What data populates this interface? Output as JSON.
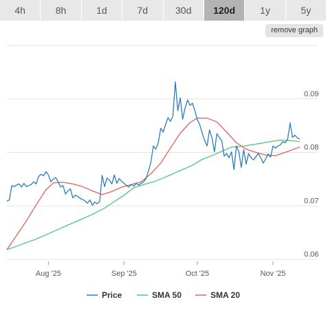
{
  "tabs": [
    {
      "label": "4h",
      "active": false
    },
    {
      "label": "8h",
      "active": false
    },
    {
      "label": "1d",
      "active": false
    },
    {
      "label": "7d",
      "active": false
    },
    {
      "label": "30d",
      "active": false
    },
    {
      "label": "120d",
      "active": true
    },
    {
      "label": "1y",
      "active": false
    },
    {
      "label": "5y",
      "active": false
    }
  ],
  "remove_graph_label": "remove graph",
  "chart_data": {
    "type": "line",
    "title": "",
    "xlabel": "",
    "ylabel": "",
    "ylim": [
      0.06,
      0.1
    ],
    "yticks": [
      "0.06",
      "0.07",
      "0.08",
      "0.09"
    ],
    "xticks": [
      {
        "label": "Aug '25",
        "date": "2025-08-01"
      },
      {
        "label": "Sep '25",
        "date": "2025-09-01"
      },
      {
        "label": "Oct '25",
        "date": "2025-10-01"
      },
      {
        "label": "Nov '25",
        "date": "2025-11-01"
      }
    ],
    "xlim": [
      "2025-07-15",
      "2025-11-12"
    ],
    "grid": "horizontal",
    "legend_position": "bottom",
    "series": [
      {
        "name": "Price",
        "color": "#2b7bb9",
        "points": [
          [
            "2025-07-15",
            0.0709
          ],
          [
            "2025-07-16",
            0.0711
          ],
          [
            "2025-07-17",
            0.0738
          ],
          [
            "2025-07-18",
            0.0736
          ],
          [
            "2025-07-19",
            0.0739
          ],
          [
            "2025-07-20",
            0.0741
          ],
          [
            "2025-07-21",
            0.0735
          ],
          [
            "2025-07-22",
            0.0742
          ],
          [
            "2025-07-23",
            0.0736
          ],
          [
            "2025-07-24",
            0.0738
          ],
          [
            "2025-07-25",
            0.074
          ],
          [
            "2025-07-26",
            0.0745
          ],
          [
            "2025-07-27",
            0.0741
          ],
          [
            "2025-07-28",
            0.0755
          ],
          [
            "2025-07-29",
            0.0759
          ],
          [
            "2025-07-30",
            0.0756
          ],
          [
            "2025-07-31",
            0.0764
          ],
          [
            "2025-08-01",
            0.0758
          ],
          [
            "2025-08-02",
            0.0745
          ],
          [
            "2025-08-03",
            0.075
          ],
          [
            "2025-08-04",
            0.0753
          ],
          [
            "2025-08-05",
            0.0745
          ],
          [
            "2025-08-06",
            0.0735
          ],
          [
            "2025-08-07",
            0.0738
          ],
          [
            "2025-08-08",
            0.0722
          ],
          [
            "2025-08-09",
            0.0728
          ],
          [
            "2025-08-10",
            0.0732
          ],
          [
            "2025-08-11",
            0.0715
          ],
          [
            "2025-08-12",
            0.072
          ],
          [
            "2025-08-13",
            0.0718
          ],
          [
            "2025-08-14",
            0.0714
          ],
          [
            "2025-08-15",
            0.0712
          ],
          [
            "2025-08-16",
            0.0709
          ],
          [
            "2025-08-17",
            0.0705
          ],
          [
            "2025-08-18",
            0.0711
          ],
          [
            "2025-08-19",
            0.0701
          ],
          [
            "2025-08-20",
            0.0707
          ],
          [
            "2025-08-21",
            0.0704
          ],
          [
            "2025-08-22",
            0.0708
          ],
          [
            "2025-08-23",
            0.0757
          ],
          [
            "2025-08-24",
            0.0736
          ],
          [
            "2025-08-25",
            0.0752
          ],
          [
            "2025-08-26",
            0.0748
          ],
          [
            "2025-08-27",
            0.0741
          ],
          [
            "2025-08-28",
            0.0758
          ],
          [
            "2025-08-29",
            0.0742
          ],
          [
            "2025-08-30",
            0.0751
          ],
          [
            "2025-08-31",
            0.0746
          ],
          [
            "2025-09-01",
            0.0742
          ],
          [
            "2025-09-02",
            0.0738
          ],
          [
            "2025-09-03",
            0.0735
          ],
          [
            "2025-09-04",
            0.074
          ],
          [
            "2025-09-05",
            0.0737
          ],
          [
            "2025-09-06",
            0.0742
          ],
          [
            "2025-09-07",
            0.0739
          ],
          [
            "2025-09-08",
            0.0742
          ],
          [
            "2025-09-09",
            0.0745
          ],
          [
            "2025-09-10",
            0.0751
          ],
          [
            "2025-09-11",
            0.0765
          ],
          [
            "2025-09-12",
            0.0782
          ],
          [
            "2025-09-13",
            0.0812
          ],
          [
            "2025-09-14",
            0.0806
          ],
          [
            "2025-09-15",
            0.0818
          ],
          [
            "2025-09-16",
            0.0845
          ],
          [
            "2025-09-17",
            0.0838
          ],
          [
            "2025-09-18",
            0.0852
          ],
          [
            "2025-09-19",
            0.0865
          ],
          [
            "2025-09-20",
            0.0858
          ],
          [
            "2025-09-21",
            0.0868
          ],
          [
            "2025-09-22",
            0.0932
          ],
          [
            "2025-09-23",
            0.0878
          ],
          [
            "2025-09-24",
            0.0902
          ],
          [
            "2025-09-25",
            0.0862
          ],
          [
            "2025-09-26",
            0.0883
          ],
          [
            "2025-09-27",
            0.0898
          ],
          [
            "2025-09-28",
            0.0888
          ],
          [
            "2025-09-29",
            0.0892
          ],
          [
            "2025-09-30",
            0.0878
          ],
          [
            "2025-10-01",
            0.0861
          ],
          [
            "2025-10-02",
            0.0852
          ],
          [
            "2025-10-03",
            0.0836
          ],
          [
            "2025-10-04",
            0.0822
          ],
          [
            "2025-10-05",
            0.0812
          ],
          [
            "2025-10-06",
            0.0842
          ],
          [
            "2025-10-07",
            0.0827
          ],
          [
            "2025-10-08",
            0.0801
          ],
          [
            "2025-10-09",
            0.0835
          ],
          [
            "2025-10-10",
            0.0828
          ],
          [
            "2025-10-11",
            0.0822
          ],
          [
            "2025-10-12",
            0.0793
          ],
          [
            "2025-10-13",
            0.0798
          ],
          [
            "2025-10-14",
            0.079
          ],
          [
            "2025-10-15",
            0.0801
          ],
          [
            "2025-10-16",
            0.0768
          ],
          [
            "2025-10-17",
            0.0812
          ],
          [
            "2025-10-18",
            0.0801
          ],
          [
            "2025-10-19",
            0.0772
          ],
          [
            "2025-10-20",
            0.0805
          ],
          [
            "2025-10-21",
            0.0778
          ],
          [
            "2025-10-22",
            0.0798
          ],
          [
            "2025-10-23",
            0.079
          ],
          [
            "2025-10-24",
            0.0786
          ],
          [
            "2025-10-25",
            0.0792
          ],
          [
            "2025-10-26",
            0.0798
          ],
          [
            "2025-10-27",
            0.079
          ],
          [
            "2025-10-28",
            0.078
          ],
          [
            "2025-10-29",
            0.0788
          ],
          [
            "2025-10-30",
            0.0797
          ],
          [
            "2025-10-31",
            0.0791
          ],
          [
            "2025-11-01",
            0.0812
          ],
          [
            "2025-11-02",
            0.0808
          ],
          [
            "2025-11-03",
            0.0812
          ],
          [
            "2025-11-04",
            0.0814
          ],
          [
            "2025-11-05",
            0.082
          ],
          [
            "2025-11-06",
            0.0818
          ],
          [
            "2025-11-07",
            0.0825
          ],
          [
            "2025-11-08",
            0.0855
          ],
          [
            "2025-11-09",
            0.0828
          ],
          [
            "2025-11-10",
            0.0832
          ],
          [
            "2025-11-11",
            0.0827
          ],
          [
            "2025-11-12",
            0.0825
          ]
        ]
      },
      {
        "name": "SMA 50",
        "color": "#4cc77a",
        "points": [
          [
            "2025-07-15",
            0.0618
          ],
          [
            "2025-07-21",
            0.0628
          ],
          [
            "2025-07-27",
            0.0638
          ],
          [
            "2025-08-01",
            0.0648
          ],
          [
            "2025-08-07",
            0.066
          ],
          [
            "2025-08-13",
            0.0672
          ],
          [
            "2025-08-19",
            0.0684
          ],
          [
            "2025-08-24",
            0.0696
          ],
          [
            "2025-08-28",
            0.0708
          ],
          [
            "2025-09-01",
            0.072
          ],
          [
            "2025-09-05",
            0.0734
          ],
          [
            "2025-09-09",
            0.074
          ],
          [
            "2025-09-13",
            0.0745
          ],
          [
            "2025-09-17",
            0.0752
          ],
          [
            "2025-09-21",
            0.076
          ],
          [
            "2025-09-25",
            0.0768
          ],
          [
            "2025-09-29",
            0.0776
          ],
          [
            "2025-10-03",
            0.0787
          ],
          [
            "2025-10-07",
            0.0794
          ],
          [
            "2025-10-11",
            0.0802
          ],
          [
            "2025-10-15",
            0.081
          ],
          [
            "2025-10-19",
            0.0811
          ],
          [
            "2025-10-23",
            0.0814
          ],
          [
            "2025-10-27",
            0.0817
          ],
          [
            "2025-10-31",
            0.082
          ],
          [
            "2025-11-04",
            0.0823
          ],
          [
            "2025-11-08",
            0.0822
          ],
          [
            "2025-11-12",
            0.082
          ]
        ]
      },
      {
        "name": "SMA 20",
        "color": "#e06060",
        "points": [
          [
            "2025-07-15",
            0.0618
          ],
          [
            "2025-07-19",
            0.0645
          ],
          [
            "2025-07-23",
            0.0672
          ],
          [
            "2025-07-27",
            0.0702
          ],
          [
            "2025-07-31",
            0.073
          ],
          [
            "2025-08-03",
            0.0743
          ],
          [
            "2025-08-07",
            0.0744
          ],
          [
            "2025-08-11",
            0.0741
          ],
          [
            "2025-08-15",
            0.0736
          ],
          [
            "2025-08-19",
            0.0728
          ],
          [
            "2025-08-23",
            0.0721
          ],
          [
            "2025-08-27",
            0.0727
          ],
          [
            "2025-08-31",
            0.0735
          ],
          [
            "2025-09-04",
            0.074
          ],
          [
            "2025-09-08",
            0.0745
          ],
          [
            "2025-09-12",
            0.076
          ],
          [
            "2025-09-16",
            0.078
          ],
          [
            "2025-09-20",
            0.0808
          ],
          [
            "2025-09-24",
            0.0836
          ],
          [
            "2025-09-28",
            0.0856
          ],
          [
            "2025-10-01",
            0.0864
          ],
          [
            "2025-10-05",
            0.0864
          ],
          [
            "2025-10-09",
            0.0857
          ],
          [
            "2025-10-13",
            0.0838
          ],
          [
            "2025-10-17",
            0.0818
          ],
          [
            "2025-10-21",
            0.0806
          ],
          [
            "2025-10-25",
            0.08
          ],
          [
            "2025-10-29",
            0.0795
          ],
          [
            "2025-11-02",
            0.0794
          ],
          [
            "2025-11-06",
            0.08
          ],
          [
            "2025-11-10",
            0.0807
          ],
          [
            "2025-11-12",
            0.081
          ]
        ]
      }
    ]
  }
}
